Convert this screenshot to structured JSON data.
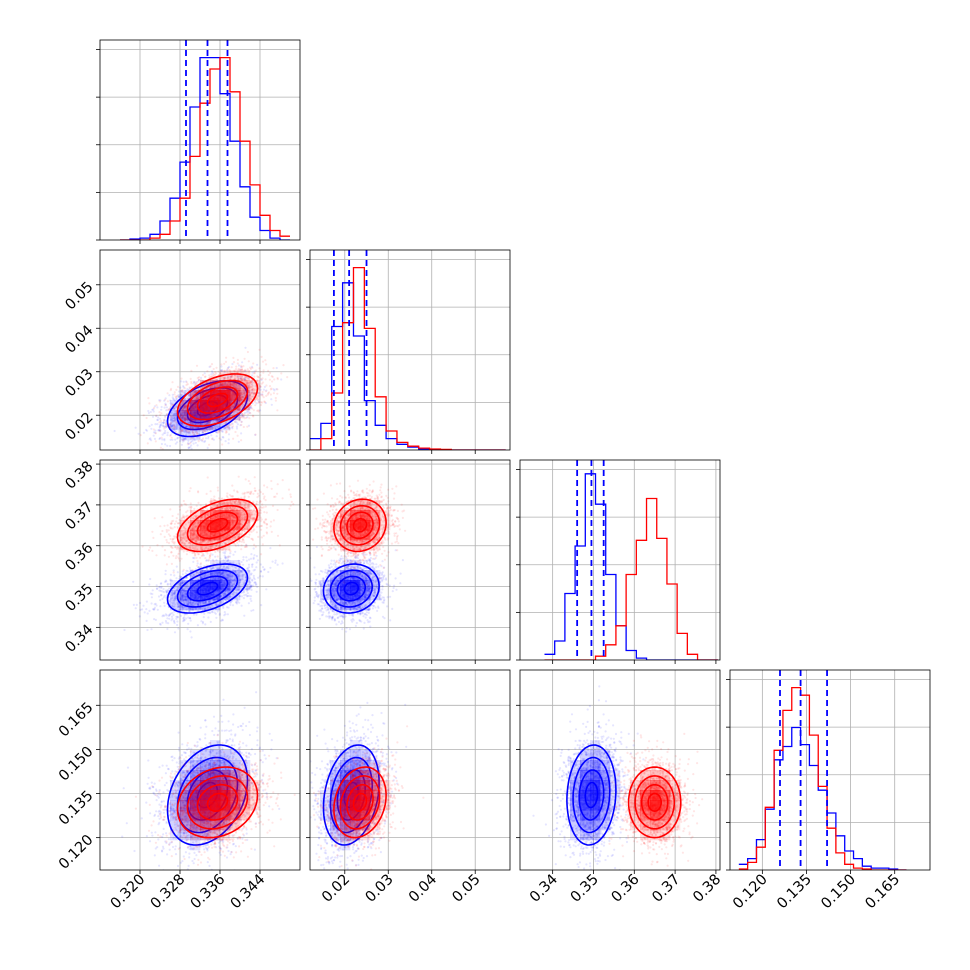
{
  "chart_data": {
    "type": "corner",
    "title": "",
    "parameters": [
      {
        "range": [
          0.312,
          0.352
        ],
        "ticks": [
          0.32,
          0.328,
          0.336,
          0.344
        ],
        "tick_labels": [
          "0.320",
          "0.328",
          "0.336",
          "0.344"
        ],
        "label": ""
      },
      {
        "range": [
          0.012,
          0.058
        ],
        "ticks": [
          0.02,
          0.03,
          0.04,
          0.05
        ],
        "tick_labels": [
          "0.02",
          "0.03",
          "0.04",
          "0.05"
        ],
        "label": ""
      },
      {
        "range": [
          0.332,
          0.381
        ],
        "ticks": [
          0.34,
          0.35,
          0.36,
          0.37,
          0.38
        ],
        "tick_labels": [
          "0.34",
          "0.35",
          "0.36",
          "0.37",
          "0.38"
        ],
        "label": ""
      },
      {
        "range": [
          0.109,
          0.177
        ],
        "ticks": [
          0.12,
          0.135,
          0.15,
          0.165
        ],
        "tick_labels": [
          "0.120",
          "0.135",
          "0.150",
          "0.165"
        ],
        "label": ""
      }
    ],
    "series": [
      {
        "name": "",
        "color": "#0000ff",
        "mean": [
          0.3335,
          0.0215,
          0.3495,
          0.1345
        ],
        "std": [
          0.004,
          0.0032,
          0.003,
          0.0085
        ],
        "corr": [
          [
            1,
            0.45,
            0.45,
            0.3
          ],
          [
            0.45,
            1,
            0.1,
            0.25
          ],
          [
            0.45,
            0.1,
            1,
            0.1
          ],
          [
            0.3,
            0.25,
            0.1,
            1
          ]
        ]
      },
      {
        "name": "",
        "color": "#ff0000",
        "mean": [
          0.3355,
          0.0235,
          0.365,
          0.132
        ],
        "std": [
          0.004,
          0.003,
          0.0032,
          0.006
        ],
        "corr": [
          [
            1,
            0.45,
            0.45,
            0.2
          ],
          [
            0.45,
            1,
            0.1,
            0.2
          ],
          [
            0.45,
            0.1,
            1,
            0.0
          ],
          [
            0.2,
            0.2,
            0.0,
            1
          ]
        ]
      }
    ],
    "quantiles": {
      "color": "#0000ff",
      "values": [
        [
          0.3292,
          0.3335,
          0.3375
        ],
        [
          0.0175,
          0.021,
          0.025
        ],
        [
          0.346,
          0.3495,
          0.3525
        ],
        [
          0.126,
          0.133,
          0.142
        ]
      ]
    },
    "contour_levels_sigma": [
      0.5,
      1.0,
      1.5,
      2.0
    ],
    "histograms": [
      {
        "edges": [
          0.316,
          0.318,
          0.32,
          0.322,
          0.324,
          0.326,
          0.328,
          0.33,
          0.332,
          0.334,
          0.336,
          0.338,
          0.34,
          0.342,
          0.344,
          0.346,
          0.348,
          0.35
        ],
        "counts": {
          "blue": [
            0,
            0.5,
            1,
            3,
            10,
            22,
            41,
            70,
            96,
            96,
            77,
            52,
            28,
            12,
            5,
            1,
            0
          ],
          "red": [
            0,
            0,
            0,
            1,
            3,
            10,
            22,
            44,
            72,
            90,
            96,
            78,
            52,
            29,
            13,
            5,
            2
          ]
        }
      },
      {
        "edges": [
          0.012,
          0.0145,
          0.017,
          0.0195,
          0.022,
          0.0245,
          0.027,
          0.0295,
          0.032,
          0.0345,
          0.037,
          0.0395,
          0.042,
          0.0445,
          0.047,
          0.0495,
          0.052,
          0.0545,
          0.057
        ],
        "counts": {
          "blue": [
            6,
            14,
            65,
            88,
            60,
            26,
            13,
            6,
            3,
            1.5,
            0.5,
            0.3,
            0,
            0,
            0,
            0,
            0,
            0
          ],
          "red": [
            0,
            6,
            30,
            67,
            96,
            64,
            28,
            10,
            4,
            2,
            1,
            0.5,
            0.3,
            0,
            0,
            0,
            0,
            0
          ]
        }
      },
      {
        "edges": [
          0.338,
          0.3405,
          0.343,
          0.3455,
          0.348,
          0.3505,
          0.353,
          0.3555,
          0.358,
          0.3605,
          0.363,
          0.3655,
          0.368,
          0.3705,
          0.373,
          0.3755,
          0.378,
          0.3805
        ],
        "counts": {
          "blue": [
            3,
            10,
            35,
            60,
            98,
            82,
            45,
            18,
            5,
            1,
            0,
            0,
            0,
            0,
            0,
            0,
            0
          ],
          "red": [
            0,
            0,
            0,
            0,
            0,
            2,
            8,
            18,
            45,
            63,
            85,
            64,
            40,
            14,
            3,
            0,
            0
          ]
        }
      },
      {
        "edges": [
          0.112,
          0.115,
          0.118,
          0.121,
          0.124,
          0.127,
          0.13,
          0.133,
          0.136,
          0.139,
          0.142,
          0.145,
          0.148,
          0.151,
          0.154,
          0.157,
          0.16,
          0.163,
          0.166,
          0.169
        ],
        "counts": {
          "blue": [
            3,
            6,
            16,
            32,
            58,
            65,
            75,
            66,
            55,
            42,
            30,
            18,
            10,
            6,
            2,
            1,
            1,
            0.5,
            0
          ],
          "red": [
            0.5,
            4,
            12,
            33,
            63,
            84,
            96,
            92,
            71,
            44,
            22,
            9,
            3,
            1,
            0.5,
            0,
            0,
            0,
            0
          ]
        }
      }
    ]
  }
}
